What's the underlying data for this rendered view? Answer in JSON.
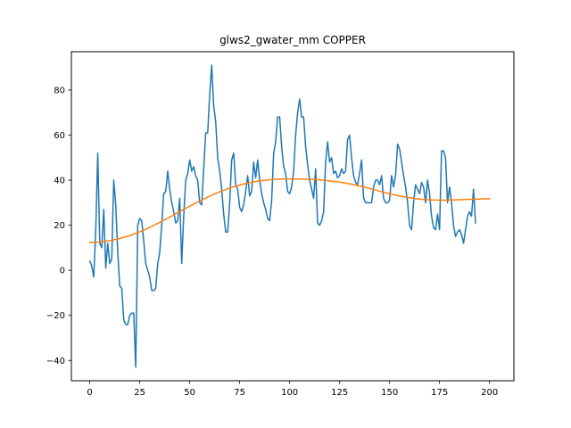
{
  "chart_data": {
    "type": "line",
    "title": "glws2_gwater_mm COPPER",
    "xlabel": "",
    "ylabel": "",
    "xlim": [
      -9.2,
      212.2
    ],
    "ylim": [
      -49.0,
      97.0
    ],
    "xticks": [
      0,
      25,
      50,
      75,
      100,
      125,
      150,
      175,
      200
    ],
    "yticks": [
      -40,
      -20,
      0,
      20,
      40,
      60,
      80
    ],
    "grid": false,
    "legend": "none",
    "series": [
      {
        "color": "#1f77b4",
        "values": [
          4,
          2,
          -3,
          18,
          52,
          12,
          10,
          27,
          1,
          12,
          3,
          5,
          40,
          29,
          8,
          -7,
          -8,
          -22,
          -24,
          -24,
          -20,
          -19,
          -19,
          -43,
          20,
          23,
          22,
          13,
          3,
          0,
          -3,
          -9,
          -9,
          -8,
          3,
          8,
          20,
          34,
          35,
          44,
          36,
          30,
          26,
          21,
          22,
          32,
          3,
          24,
          40,
          43,
          49,
          44,
          46,
          42,
          40,
          30,
          29,
          45,
          61,
          61,
          78,
          91,
          73,
          66,
          50,
          44,
          36,
          25,
          17,
          17,
          30,
          49,
          52,
          38,
          36,
          28,
          26,
          29,
          35,
          42,
          33,
          35,
          48,
          41,
          49,
          40,
          34,
          30,
          27,
          23,
          22,
          31,
          52,
          57,
          68,
          68,
          55,
          46,
          43,
          35,
          34,
          37,
          44,
          60,
          70,
          76,
          68,
          68,
          55,
          47,
          40,
          36,
          32,
          45,
          21,
          20,
          22,
          26,
          48,
          57,
          48,
          50,
          43,
          44,
          41,
          42,
          45,
          43,
          44,
          58,
          60,
          50,
          42,
          39,
          38,
          43,
          49,
          32,
          30,
          30,
          30,
          30,
          37,
          40,
          40,
          38,
          42,
          32,
          30,
          30,
          31,
          42,
          37,
          42,
          56,
          54,
          48,
          42,
          37,
          30,
          20,
          18,
          30,
          38,
          36,
          34,
          39,
          37,
          30,
          40,
          34,
          24,
          19,
          18,
          25,
          18,
          53,
          53,
          50,
          30,
          37,
          30,
          20,
          15,
          17,
          18,
          16,
          12,
          18,
          24,
          26,
          24,
          36,
          21
        ]
      },
      {
        "color": "#ff7f0e",
        "values": [
          12.4,
          12.4,
          12.4,
          12.5,
          12.5,
          12.6,
          12.7,
          12.8,
          12.9,
          13.0,
          13.2,
          13.3,
          13.5,
          13.7,
          13.9,
          14.1,
          14.4,
          14.6,
          14.9,
          15.1,
          15.4,
          15.7,
          16.1,
          16.4,
          16.7,
          17.1,
          17.5,
          17.8,
          18.2,
          18.6,
          19.1,
          19.5,
          19.9,
          20.4,
          20.8,
          21.3,
          21.7,
          22.2,
          22.7,
          23.1,
          23.6,
          24.1,
          24.6,
          25.1,
          25.6,
          26.0,
          26.5,
          27.0,
          27.5,
          28.0,
          28.4,
          28.9,
          29.4,
          29.8,
          30.3,
          30.7,
          31.2,
          31.6,
          32.0,
          32.5,
          32.9,
          33.3,
          33.7,
          34.1,
          34.4,
          34.8,
          35.2,
          35.5,
          35.8,
          36.2,
          36.5,
          36.8,
          37.1,
          37.3,
          37.6,
          37.8,
          38.1,
          38.3,
          38.5,
          38.7,
          38.9,
          39.1,
          39.3,
          39.4,
          39.6,
          39.7,
          39.8,
          39.9,
          40.0,
          40.1,
          40.2,
          40.2,
          40.3,
          40.4,
          40.4,
          40.4,
          40.5,
          40.5,
          40.5,
          40.5,
          40.5,
          40.5,
          40.5,
          40.5,
          40.5,
          40.5,
          40.5,
          40.5,
          40.4,
          40.4,
          40.4,
          40.3,
          40.3,
          40.2,
          40.2,
          40.1,
          40.0,
          40.0,
          39.9,
          39.8,
          39.7,
          39.6,
          39.5,
          39.4,
          39.3,
          39.1,
          39.0,
          38.9,
          38.7,
          38.5,
          38.4,
          38.2,
          38.0,
          37.8,
          37.6,
          37.4,
          37.2,
          37.0,
          36.8,
          36.5,
          36.3,
          36.1,
          35.8,
          35.6,
          35.4,
          35.1,
          34.9,
          34.7,
          34.4,
          34.2,
          34.0,
          33.8,
          33.6,
          33.4,
          33.2,
          33.0,
          32.8,
          32.7,
          32.5,
          32.3,
          32.2,
          32.1,
          31.9,
          31.8,
          31.7,
          31.6,
          31.5,
          31.4,
          31.4,
          31.3,
          31.3,
          31.2,
          31.2,
          31.2,
          31.1,
          31.1,
          31.1,
          31.1,
          31.1,
          31.1,
          31.2,
          31.2,
          31.2,
          31.2,
          31.3,
          31.3,
          31.3,
          31.4,
          31.4,
          31.5,
          31.5,
          31.5,
          31.6,
          31.6,
          31.6,
          31.6,
          31.7,
          31.7,
          31.7,
          31.7,
          31.7
        ]
      }
    ]
  }
}
